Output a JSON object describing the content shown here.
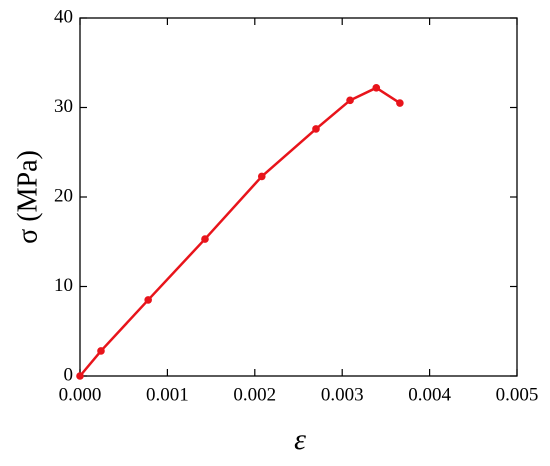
{
  "chart_data": {
    "type": "line",
    "x_label": "ε",
    "y_label": "σ (MPa)",
    "x": [
      0,
      0.00024,
      0.00078,
      0.00143,
      0.00208,
      0.0027,
      0.00309,
      0.00339,
      0.00366
    ],
    "series": [
      {
        "color": "#e8141b",
        "values": [
          0,
          2.8,
          8.5,
          15.3,
          22.3,
          27.6,
          30.8,
          32.2,
          30.5
        ]
      }
    ],
    "xlim": [
      0,
      0.005
    ],
    "xticks": [
      {
        "value": 0,
        "label": "0.000"
      },
      {
        "value": 0.001,
        "label": "0.001"
      },
      {
        "value": 0.002,
        "label": "0.002"
      },
      {
        "value": 0.003,
        "label": "0.003"
      },
      {
        "value": 0.004,
        "label": "0.004"
      },
      {
        "value": 0.005,
        "label": "0.005"
      }
    ],
    "ylim": [
      0,
      40
    ],
    "yticks": [
      0,
      10,
      20,
      30,
      40
    ]
  }
}
